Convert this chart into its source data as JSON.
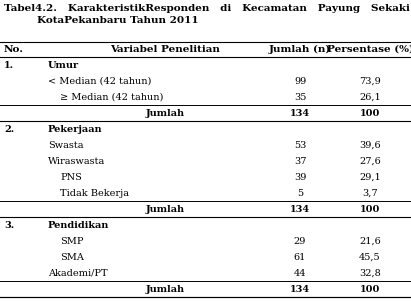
{
  "title_line1": "Tabel4.2.   KarakteristikResponden   di   Kecamatan   Payung   Sekaki",
  "title_line2": "KotaPekanbaru Tahun 2011",
  "col_headers": [
    "No.",
    "Variabel Penelitian",
    "Jumlah (n)",
    "Persentase (%)"
  ],
  "rows": [
    {
      "no": "1.",
      "label": "Umur",
      "bold": true,
      "jumlah": "",
      "persen": "",
      "indent": 0,
      "sep_above": false,
      "sep_below": false
    },
    {
      "no": "",
      "label": "< Median (42 tahun)",
      "bold": false,
      "jumlah": "99",
      "persen": "73,9",
      "indent": 1,
      "sep_above": false,
      "sep_below": false
    },
    {
      "no": "",
      "label": "≥ Median (42 tahun)",
      "bold": false,
      "jumlah": "35",
      "persen": "26,1",
      "indent": 2,
      "sep_above": false,
      "sep_below": false
    },
    {
      "no": "",
      "label": "Jumlah",
      "bold": true,
      "jumlah": "134",
      "persen": "100",
      "indent": 3,
      "sep_above": true,
      "sep_below": true
    },
    {
      "no": "2.",
      "label": "Pekerjaan",
      "bold": true,
      "jumlah": "",
      "persen": "",
      "indent": 0,
      "sep_above": false,
      "sep_below": false
    },
    {
      "no": "",
      "label": "Swasta",
      "bold": false,
      "jumlah": "53",
      "persen": "39,6",
      "indent": 1,
      "sep_above": false,
      "sep_below": false
    },
    {
      "no": "",
      "label": "Wiraswasta",
      "bold": false,
      "jumlah": "37",
      "persen": "27,6",
      "indent": 1,
      "sep_above": false,
      "sep_below": false
    },
    {
      "no": "",
      "label": "PNS",
      "bold": false,
      "jumlah": "39",
      "persen": "29,1",
      "indent": 2,
      "sep_above": false,
      "sep_below": false
    },
    {
      "no": "",
      "label": "Tidak Bekerja",
      "bold": false,
      "jumlah": "5",
      "persen": "3,7",
      "indent": 2,
      "sep_above": false,
      "sep_below": false
    },
    {
      "no": "",
      "label": "Jumlah",
      "bold": true,
      "jumlah": "134",
      "persen": "100",
      "indent": 3,
      "sep_above": true,
      "sep_below": true
    },
    {
      "no": "3.",
      "label": "Pendidikan",
      "bold": true,
      "jumlah": "",
      "persen": "",
      "indent": 0,
      "sep_above": false,
      "sep_below": false
    },
    {
      "no": "",
      "label": "SMP",
      "bold": false,
      "jumlah": "29",
      "persen": "21,6",
      "indent": 2,
      "sep_above": false,
      "sep_below": false
    },
    {
      "no": "",
      "label": "SMA",
      "bold": false,
      "jumlah": "61",
      "persen": "45,5",
      "indent": 2,
      "sep_above": false,
      "sep_below": false
    },
    {
      "no": "",
      "label": "Akademi/PT",
      "bold": false,
      "jumlah": "44",
      "persen": "32,8",
      "indent": 1,
      "sep_above": false,
      "sep_below": false
    },
    {
      "no": "",
      "label": "Jumlah",
      "bold": true,
      "jumlah": "134",
      "persen": "100",
      "indent": 3,
      "sep_above": true,
      "sep_below": true
    }
  ],
  "font_size": 7.0,
  "title_font_size": 7.5,
  "header_font_size": 7.5,
  "bg_color": "#ffffff",
  "text_color": "#000000"
}
